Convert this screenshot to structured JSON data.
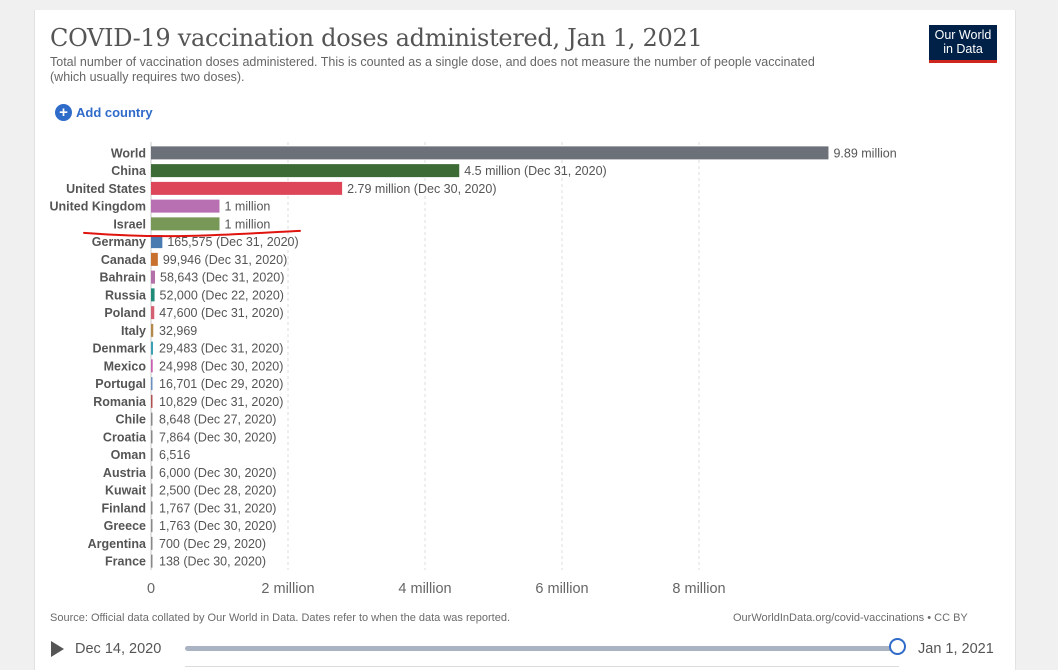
{
  "header": {
    "title": "COVID-19 vaccination doses administered, Jan 1, 2021",
    "subtitle": "Total number of vaccination doses administered. This is counted as a single dose, and does not measure the number of people vaccinated (which usually requires two doses).",
    "logo_line1": "Our World",
    "logo_line2": "in Data"
  },
  "controls": {
    "add_country_icon": "+",
    "add_country_label": "Add country"
  },
  "chart_data": {
    "type": "bar",
    "orientation": "horizontal",
    "title": "COVID-19 vaccination doses administered, Jan 1, 2021",
    "xlim": [
      0,
      10000000
    ],
    "xticks": [
      0,
      2000000,
      4000000,
      6000000,
      8000000
    ],
    "xtick_labels": [
      "0",
      "2 million",
      "4 million",
      "6 million",
      "8 million"
    ],
    "grid": true,
    "annotation": "red underline beneath Israel",
    "annotation_color": "#e0140f",
    "bars": [
      {
        "country": "World",
        "value": 9890000,
        "label": "9.89 million",
        "color": "#6c7078"
      },
      {
        "country": "China",
        "value": 4500000,
        "label": "4.5 million (Dec 31, 2020)",
        "color": "#3d6b35"
      },
      {
        "country": "United States",
        "value": 2790000,
        "label": "2.79 million (Dec 30, 2020)",
        "color": "#dd4559"
      },
      {
        "country": "United Kingdom",
        "value": 1000000,
        "label": "1 million",
        "color": "#b970b3"
      },
      {
        "country": "Israel",
        "value": 1000000,
        "label": "1 million",
        "color": "#779857"
      },
      {
        "country": "Germany",
        "value": 165575,
        "label": "165,575 (Dec 31, 2020)",
        "color": "#4a7bb0"
      },
      {
        "country": "Canada",
        "value": 99946,
        "label": "99,946 (Dec 31, 2020)",
        "color": "#c8702e"
      },
      {
        "country": "Bahrain",
        "value": 58643,
        "label": "58,643 (Dec 31, 2020)",
        "color": "#b470a8"
      },
      {
        "country": "Russia",
        "value": 52000,
        "label": "52,000 (Dec 22, 2020)",
        "color": "#1f8a7a"
      },
      {
        "country": "Poland",
        "value": 47600,
        "label": "47,600 (Dec 31, 2020)",
        "color": "#d35f70"
      },
      {
        "country": "Italy",
        "value": 32969,
        "label": "32,969",
        "color": "#b38a4a"
      },
      {
        "country": "Denmark",
        "value": 29483,
        "label": "29,483 (Dec 31, 2020)",
        "color": "#3aa1b4"
      },
      {
        "country": "Mexico",
        "value": 24998,
        "label": "24,998 (Dec 30, 2020)",
        "color": "#c95fb0"
      },
      {
        "country": "Portugal",
        "value": 16701,
        "label": "16,701 (Dec 29, 2020)",
        "color": "#6a8fc0"
      },
      {
        "country": "Romania",
        "value": 10829,
        "label": "10,829 (Dec 31, 2020)",
        "color": "#b05050"
      },
      {
        "country": "Chile",
        "value": 8648,
        "label": "8,648 (Dec 27, 2020)",
        "color": "#888888"
      },
      {
        "country": "Croatia",
        "value": 7864,
        "label": "7,864 (Dec 30, 2020)",
        "color": "#888888"
      },
      {
        "country": "Oman",
        "value": 6516,
        "label": "6,516",
        "color": "#888888"
      },
      {
        "country": "Austria",
        "value": 6000,
        "label": "6,000 (Dec 30, 2020)",
        "color": "#888888"
      },
      {
        "country": "Kuwait",
        "value": 2500,
        "label": "2,500 (Dec 28, 2020)",
        "color": "#888888"
      },
      {
        "country": "Finland",
        "value": 1767,
        "label": "1,767 (Dec 31, 2020)",
        "color": "#888888"
      },
      {
        "country": "Greece",
        "value": 1763,
        "label": "1,763 (Dec 30, 2020)",
        "color": "#888888"
      },
      {
        "country": "Argentina",
        "value": 700,
        "label": "700 (Dec 29, 2020)",
        "color": "#888888"
      },
      {
        "country": "France",
        "value": 138,
        "label": "138 (Dec 30, 2020)",
        "color": "#888888"
      }
    ]
  },
  "footer": {
    "source": "Source: Official data collated by Our World in Data. Dates refer to when the data was reported.",
    "credit": "OurWorldInData.org/covid-vaccinations • CC BY"
  },
  "timeline": {
    "start_label": "Dec 14, 2020",
    "end_label": "Jan 1, 2021",
    "play_icon": "play-icon"
  }
}
